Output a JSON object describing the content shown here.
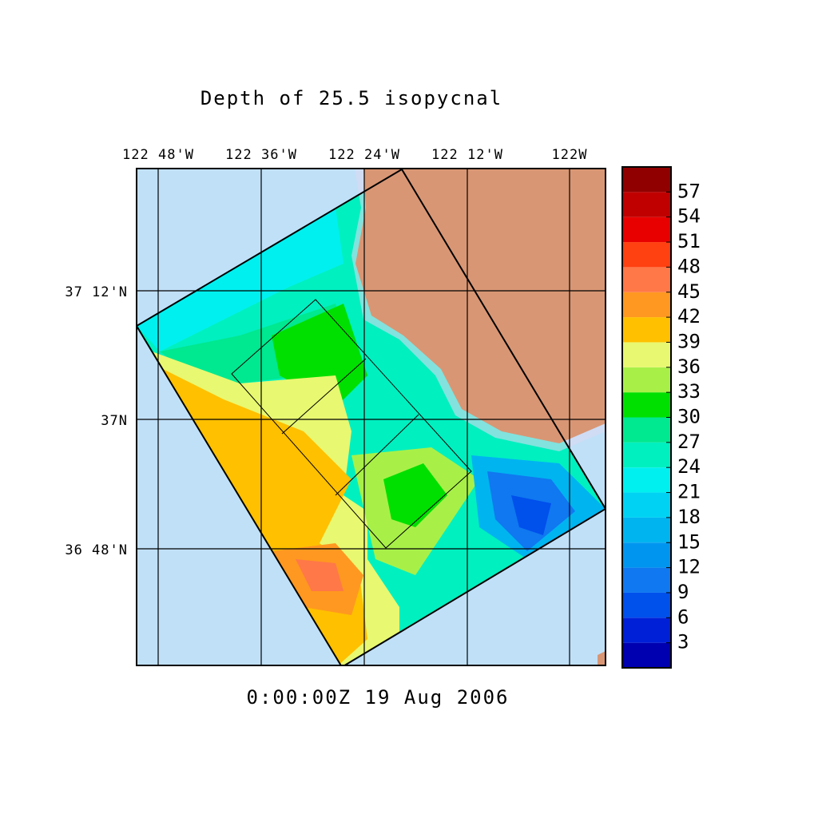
{
  "title": "Depth of 25.5 isopycnal",
  "timestamp": "0:00:00Z 19 Aug 2006",
  "map": {
    "lon_labels": [
      "122 48'W",
      "122 36'W",
      "122 24'W",
      "122 12'W",
      "122W"
    ],
    "lat_labels": [
      "37 12'N",
      "37N",
      "36 48'N"
    ]
  },
  "colorbar": {
    "range": [
      0,
      60
    ],
    "ticks": [
      3,
      6,
      9,
      12,
      15,
      18,
      21,
      24,
      27,
      30,
      33,
      36,
      39,
      42,
      45,
      48,
      51,
      54,
      57
    ],
    "colors": [
      "#0000b0",
      "#0020d8",
      "#0050ec",
      "#1078f0",
      "#0096f0",
      "#00b4f0",
      "#00d2f4",
      "#00f0f0",
      "#00f0c0",
      "#00e890",
      "#00e000",
      "#a8f048",
      "#e8f870",
      "#ffc000",
      "#ff9820",
      "#ff7848",
      "#ff4010",
      "#e80000",
      "#c00000",
      "#900000"
    ]
  }
}
